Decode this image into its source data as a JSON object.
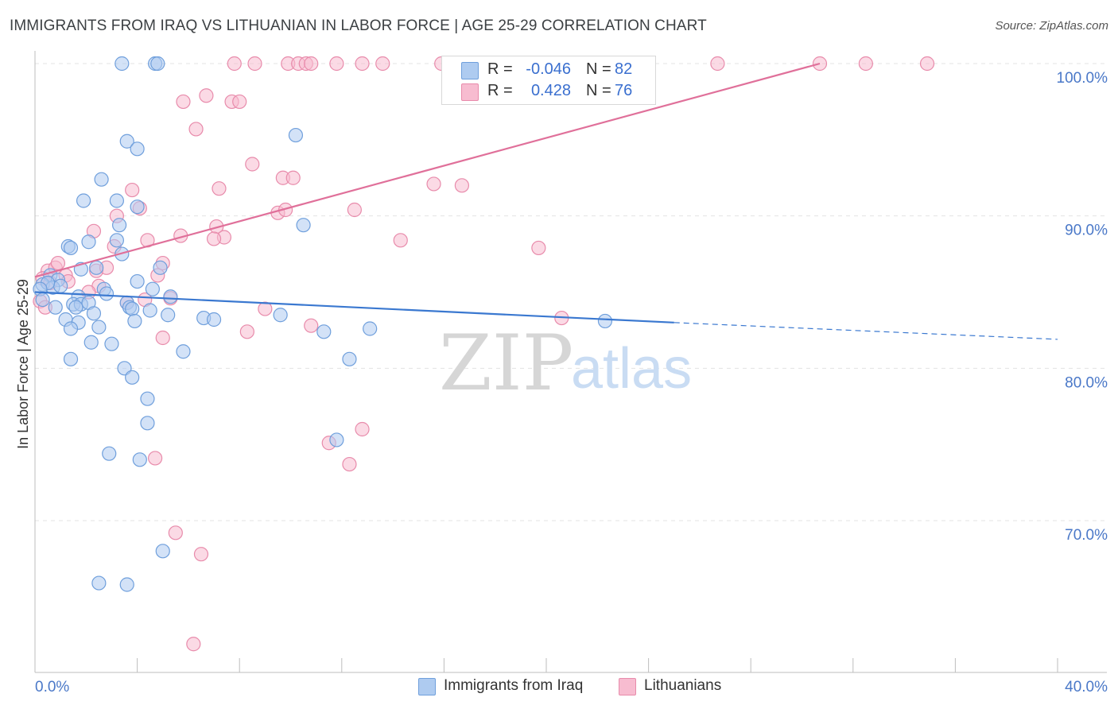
{
  "title": "IMMIGRANTS FROM IRAQ VS LITHUANIAN IN LABOR FORCE | AGE 25-29 CORRELATION CHART",
  "source": "Source: ZipAtlas.com",
  "watermark": {
    "zip": "ZIP",
    "atlas": "atlas"
  },
  "legend": {
    "rows": [
      {
        "r_label": "R =",
        "r_value": "-0.046",
        "n_label": "N =",
        "n_value": "82"
      },
      {
        "r_label": "R =",
        "r_value": "0.428",
        "n_label": "N =",
        "n_value": "76"
      }
    ]
  },
  "bottom_legend": [
    "Immigrants from Iraq",
    "Lithuanians"
  ],
  "colors": {
    "iraq_fill": "#aecbf0",
    "iraq_stroke": "#6f9fdc",
    "iraq_line": "#3a78d0",
    "lith_fill": "#f7bcd0",
    "lith_stroke": "#e88bab",
    "lith_line": "#e0709a",
    "grid": "#e3e3e3",
    "tick_text": "#4a78c8"
  },
  "chart_data": {
    "type": "scatter",
    "title": "IMMIGRANTS FROM IRAQ VS LITHUANIAN IN LABOR FORCE | AGE 25-29 CORRELATION CHART",
    "xlabel": "",
    "ylabel": "In Labor Force | Age 25-29",
    "xlim": [
      0,
      40
    ],
    "ylim": [
      60,
      101.5
    ],
    "x_tick_labels": [
      {
        "value": 0,
        "label": "0.0%"
      },
      {
        "value": 40,
        "label": "40.0%"
      }
    ],
    "y_tick_labels": [
      {
        "value": 100,
        "label": "100.0%"
      },
      {
        "value": 90,
        "label": "90.0%"
      },
      {
        "value": 80,
        "label": "80.0%"
      },
      {
        "value": 70,
        "label": "70.0%"
      }
    ],
    "series": [
      {
        "name": "Immigrants from Iraq",
        "R": -0.046,
        "N": 82,
        "trend": {
          "x0": 0.0,
          "y0": 85.0,
          "x1": 25.0,
          "y1": 83.0,
          "dash_to_x": 40.0,
          "dash_to_y": 81.9
        },
        "points": [
          [
            3.4,
            100
          ],
          [
            4.7,
            100
          ],
          [
            4.8,
            100
          ],
          [
            10.2,
            95.3
          ],
          [
            3.6,
            94.9
          ],
          [
            4.0,
            94.4
          ],
          [
            2.6,
            92.4
          ],
          [
            1.9,
            91.0
          ],
          [
            3.2,
            91.0
          ],
          [
            4.0,
            90.6
          ],
          [
            10.5,
            89.4
          ],
          [
            3.3,
            89.4
          ],
          [
            3.2,
            88.4
          ],
          [
            2.1,
            88.3
          ],
          [
            1.3,
            88.0
          ],
          [
            1.4,
            87.9
          ],
          [
            3.4,
            87.5
          ],
          [
            2.4,
            86.6
          ],
          [
            1.8,
            86.5
          ],
          [
            4.9,
            86.6
          ],
          [
            0.6,
            86.1
          ],
          [
            0.9,
            85.8
          ],
          [
            0.3,
            85.5
          ],
          [
            0.7,
            85.3
          ],
          [
            1.0,
            85.4
          ],
          [
            0.5,
            85.6
          ],
          [
            0.2,
            85.2
          ],
          [
            4.0,
            85.7
          ],
          [
            4.6,
            85.2
          ],
          [
            2.7,
            85.2
          ],
          [
            2.8,
            84.9
          ],
          [
            0.3,
            84.5
          ],
          [
            1.7,
            84.7
          ],
          [
            1.5,
            84.2
          ],
          [
            5.3,
            84.7
          ],
          [
            3.6,
            84.3
          ],
          [
            1.8,
            84.2
          ],
          [
            1.6,
            84.0
          ],
          [
            2.1,
            84.3
          ],
          [
            3.7,
            84.0
          ],
          [
            3.8,
            83.9
          ],
          [
            0.8,
            84.0
          ],
          [
            4.5,
            83.8
          ],
          [
            2.3,
            83.6
          ],
          [
            5.2,
            83.5
          ],
          [
            9.6,
            83.5
          ],
          [
            1.2,
            83.2
          ],
          [
            1.7,
            83.0
          ],
          [
            6.6,
            83.3
          ],
          [
            7.0,
            83.2
          ],
          [
            3.9,
            83.1
          ],
          [
            1.4,
            82.6
          ],
          [
            2.5,
            82.7
          ],
          [
            11.3,
            82.4
          ],
          [
            13.1,
            82.6
          ],
          [
            22.3,
            83.1
          ],
          [
            2.2,
            81.7
          ],
          [
            3.0,
            81.6
          ],
          [
            5.8,
            81.1
          ],
          [
            1.4,
            80.6
          ],
          [
            12.3,
            80.6
          ],
          [
            3.5,
            80.0
          ],
          [
            3.8,
            79.4
          ],
          [
            4.4,
            78.0
          ],
          [
            4.4,
            76.4
          ],
          [
            11.8,
            75.3
          ],
          [
            2.9,
            74.4
          ],
          [
            4.1,
            74.0
          ],
          [
            5.0,
            68.0
          ],
          [
            2.5,
            65.9
          ],
          [
            3.6,
            65.8
          ]
        ]
      },
      {
        "name": "Lithuanians",
        "R": 0.428,
        "N": 76,
        "trend": {
          "x0": 0.0,
          "y0": 86.0,
          "x1": 30.7,
          "y1": 100.0
        },
        "points": [
          [
            7.8,
            100
          ],
          [
            8.6,
            100
          ],
          [
            9.9,
            100
          ],
          [
            10.3,
            100
          ],
          [
            10.6,
            100
          ],
          [
            10.8,
            100
          ],
          [
            11.8,
            100
          ],
          [
            12.8,
            100
          ],
          [
            13.6,
            100
          ],
          [
            15.9,
            100
          ],
          [
            16.4,
            100
          ],
          [
            22.7,
            100
          ],
          [
            26.7,
            100
          ],
          [
            30.7,
            100
          ],
          [
            32.5,
            100
          ],
          [
            34.9,
            100
          ],
          [
            6.7,
            97.9
          ],
          [
            5.8,
            97.5
          ],
          [
            7.7,
            97.5
          ],
          [
            8.0,
            97.5
          ],
          [
            6.3,
            95.7
          ],
          [
            8.5,
            93.4
          ],
          [
            9.7,
            92.5
          ],
          [
            10.1,
            92.5
          ],
          [
            15.6,
            92.1
          ],
          [
            16.7,
            92.0
          ],
          [
            3.8,
            91.7
          ],
          [
            7.2,
            91.8
          ],
          [
            4.1,
            90.5
          ],
          [
            9.5,
            90.2
          ],
          [
            9.8,
            90.4
          ],
          [
            12.5,
            90.4
          ],
          [
            3.2,
            90.0
          ],
          [
            7.1,
            89.3
          ],
          [
            2.3,
            89.0
          ],
          [
            5.7,
            88.7
          ],
          [
            7.4,
            88.6
          ],
          [
            4.4,
            88.4
          ],
          [
            7.0,
            88.5
          ],
          [
            14.3,
            88.4
          ],
          [
            19.7,
            87.9
          ],
          [
            3.1,
            88.0
          ],
          [
            0.5,
            86.4
          ],
          [
            0.8,
            86.6
          ],
          [
            0.9,
            86.9
          ],
          [
            5.0,
            86.9
          ],
          [
            2.4,
            86.4
          ],
          [
            2.8,
            86.6
          ],
          [
            1.2,
            86.1
          ],
          [
            4.8,
            86.1
          ],
          [
            0.3,
            85.9
          ],
          [
            1.3,
            85.7
          ],
          [
            2.5,
            85.4
          ],
          [
            2.1,
            85.0
          ],
          [
            0.6,
            85.6
          ],
          [
            0.2,
            84.4
          ],
          [
            5.3,
            84.6
          ],
          [
            4.3,
            84.5
          ],
          [
            3.6,
            84.3
          ],
          [
            0.4,
            84.0
          ],
          [
            9.0,
            83.9
          ],
          [
            10.8,
            82.8
          ],
          [
            8.3,
            82.4
          ],
          [
            20.6,
            83.3
          ],
          [
            5.0,
            82.0
          ],
          [
            12.8,
            76.0
          ],
          [
            11.5,
            75.1
          ],
          [
            4.7,
            74.1
          ],
          [
            12.3,
            73.7
          ],
          [
            5.5,
            69.2
          ],
          [
            6.5,
            67.8
          ],
          [
            6.2,
            61.9
          ]
        ]
      }
    ]
  }
}
